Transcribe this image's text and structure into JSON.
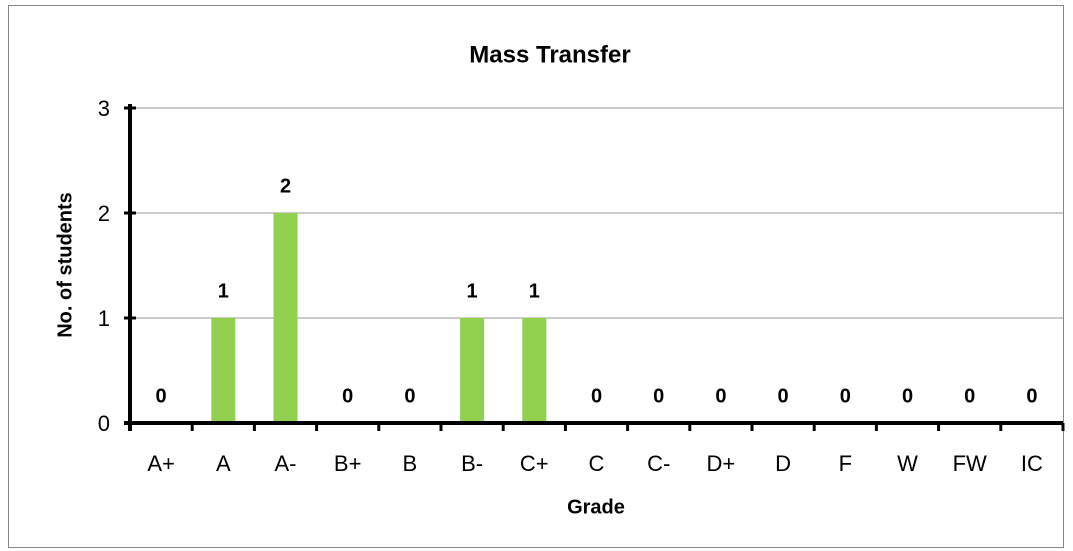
{
  "chart_data": {
    "type": "bar",
    "title": "Mass Transfer",
    "x_label": "Grade",
    "y_label": "No. of students",
    "categories": [
      "A+",
      "A",
      "A-",
      "B+",
      "B",
      "B-",
      "C+",
      "C",
      "C-",
      "D+",
      "D",
      "F",
      "W",
      "FW",
      "IC"
    ],
    "values": [
      0,
      1,
      2,
      0,
      0,
      1,
      1,
      0,
      0,
      0,
      0,
      0,
      0,
      0,
      0
    ],
    "color": "#92d050",
    "ylim": [
      0,
      3
    ],
    "yticks": [
      0,
      1,
      2,
      3
    ],
    "grid": true
  }
}
